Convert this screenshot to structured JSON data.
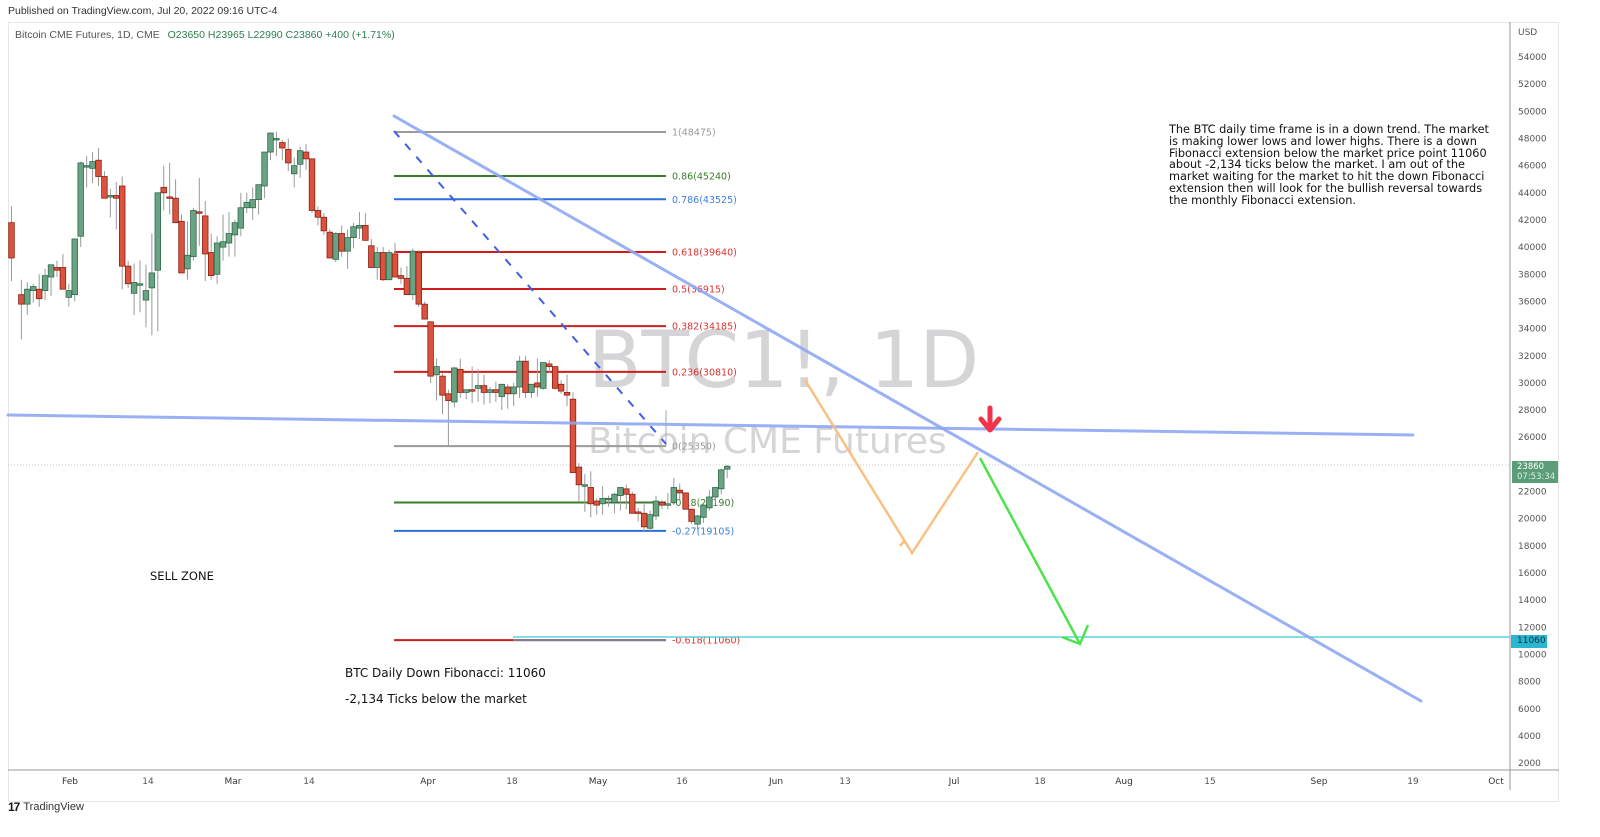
{
  "header": {
    "published": "Published on TradingView.com, Jul 20, 2022 09:16 UTC-4",
    "symbol": "Bitcoin CME Futures, 1D, CME",
    "ohlc": "O23650  H23965  L22990  C23860  +400 (+1.71%)"
  },
  "watermark": {
    "line1": "BTC1!, 1D",
    "line2": "Bitcoin CME Futures"
  },
  "price_axis": {
    "currency": "USD",
    "last_price": "23860",
    "countdown": "07:53:34",
    "fib_target_tag": "11060"
  },
  "annotations": {
    "note": "The BTC daily time frame is in a down trend. The market is making lower lows and lower highs. There is a down Fibonacci extension below the market price point 11060 about -2,134 ticks below the market. I am out of the market waiting for the market to hit the down Fibonacci extension then will look for the bullish reversal towards the monthly Fibonacci extension.",
    "sell_zone": "SELL ZONE",
    "fib_note_1": "BTC Daily Down Fibonacci: 11060",
    "fib_note_2": "-2,134 Ticks below the market"
  },
  "footer": {
    "brand": "TradingView",
    "brand_mark": "17"
  },
  "colors": {
    "up": "#6aa384",
    "up_border": "#2e6b4a",
    "down": "#d9533f",
    "down_border": "#8e1f12",
    "trendline": "#8fa8f5",
    "fib_red": "#d01c1c",
    "fib_green": "#3a7d2a",
    "fib_blue": "#2a6fdb",
    "fib_grey": "#9a9a9a",
    "target": "#5ad0e0",
    "arrow_red": "#f0344a",
    "zigzag": "#fbbd7c",
    "proj_green": "#4ce34c"
  },
  "chart_data": {
    "type": "candlestick",
    "title": "Bitcoin CME Futures, 1D, CME",
    "xlabel": "",
    "ylabel": "USD",
    "ylim": [
      2000,
      55000
    ],
    "x_ticks": [
      "Feb",
      "14",
      "Mar",
      "14",
      "Apr",
      "18",
      "May",
      "16",
      "Jun",
      "13",
      "Jul",
      "18",
      "Aug",
      "15",
      "Sep",
      "19",
      "Oct"
    ],
    "y_ticks": [
      54000,
      52000,
      50000,
      48000,
      46000,
      44000,
      42000,
      40000,
      38000,
      36000,
      34000,
      32000,
      30000,
      28000,
      26000,
      22000,
      20000,
      18000,
      16000,
      14000,
      12000,
      10000,
      8000,
      6000,
      4000,
      2000
    ],
    "grid": false,
    "last": {
      "open": 23650,
      "high": 23965,
      "low": 22990,
      "close": 23860,
      "change": 400,
      "change_pct": 1.71
    },
    "fibonacci": [
      {
        "level": "1",
        "price": 48475,
        "label": "1(48475)",
        "color": "grey"
      },
      {
        "level": "0.86",
        "price": 45240,
        "label": "0.86(45240)",
        "color": "green"
      },
      {
        "level": "0.786",
        "price": 43525,
        "label": "0.786(43525)",
        "color": "blue"
      },
      {
        "level": "0.618",
        "price": 39640,
        "label": "0.618(39640)",
        "color": "red"
      },
      {
        "level": "0.5",
        "price": 36915,
        "label": "0.5(36915)",
        "color": "red"
      },
      {
        "level": "0.382",
        "price": 34185,
        "label": "0.382(34185)",
        "color": "red"
      },
      {
        "level": "0.236",
        "price": 30810,
        "label": "0.236(30810)",
        "color": "red"
      },
      {
        "level": "0",
        "price": 25350,
        "label": "0(25350)",
        "color": "grey"
      },
      {
        "level": "-0.18",
        "price": 21190,
        "label": "-0.18(21190)",
        "color": "green"
      },
      {
        "level": "-0.27",
        "price": 19105,
        "label": "-0.27(19105)",
        "color": "blue"
      },
      {
        "level": "-0.618",
        "price": 11060,
        "label": "-0.618(11060)",
        "color": "red"
      }
    ],
    "candles": [
      [
        9,
        41800,
        43000,
        37500,
        39200
      ],
      [
        14,
        36500,
        37600,
        33200,
        35800
      ],
      [
        17,
        35800,
        37400,
        35000,
        36900
      ],
      [
        20,
        36800,
        37300,
        35900,
        37100
      ],
      [
        23,
        36900,
        38000,
        35600,
        36200
      ],
      [
        26,
        36800,
        38400,
        36100,
        37900
      ],
      [
        29,
        37800,
        38500,
        36400,
        38700
      ],
      [
        32,
        38500,
        39000,
        37800,
        38300
      ],
      [
        35,
        38500,
        39500,
        37000,
        36900
      ],
      [
        38,
        36300,
        37300,
        35600,
        36800
      ],
      [
        41,
        36500,
        40300,
        36000,
        40600
      ],
      [
        44,
        40800,
        46300,
        40000,
        46200
      ],
      [
        47,
        45900,
        46700,
        44400,
        46000
      ],
      [
        50,
        45800,
        47000,
        44700,
        46300
      ],
      [
        53,
        46400,
        47300,
        44500,
        45200
      ],
      [
        56,
        45200,
        45600,
        43600,
        43600
      ],
      [
        59,
        43700,
        44300,
        42200,
        43800
      ],
      [
        62,
        43800,
        44800,
        41300,
        43600
      ],
      [
        65,
        44500,
        45200,
        36900,
        38600
      ],
      [
        68,
        38600,
        39000,
        37000,
        37300
      ],
      [
        71,
        36600,
        38800,
        35000,
        37400
      ],
      [
        74,
        37200,
        39000,
        35200,
        37300
      ],
      [
        77,
        36100,
        38700,
        34100,
        36800
      ],
      [
        80,
        37000,
        41000,
        33500,
        38100
      ],
      [
        83,
        38300,
        43800,
        33800,
        44000
      ],
      [
        86,
        44400,
        46000,
        42700,
        44000
      ],
      [
        89,
        43700,
        46200,
        42400,
        43600
      ],
      [
        92,
        43600,
        45000,
        43600,
        41800
      ],
      [
        95,
        41900,
        42400,
        39900,
        38100
      ],
      [
        98,
        38400,
        41900,
        37600,
        39400
      ],
      [
        101,
        39300,
        42900,
        39000,
        42700
      ],
      [
        104,
        42600,
        45100,
        40100,
        42500
      ],
      [
        107,
        42300,
        43400,
        37500,
        39500
      ],
      [
        110,
        39600,
        41000,
        37600,
        37900
      ],
      [
        113,
        38000,
        40800,
        37300,
        40300
      ],
      [
        116,
        40000,
        42400,
        39000,
        40400
      ],
      [
        119,
        40300,
        42600,
        39300,
        41000
      ],
      [
        122,
        40900,
        42000,
        39300,
        41800
      ],
      [
        125,
        41400,
        44000,
        40800,
        42900
      ],
      [
        128,
        42900,
        44000,
        42500,
        43300
      ],
      [
        131,
        42900,
        44400,
        42000,
        43500
      ],
      [
        134,
        43500,
        44400,
        42400,
        44600
      ],
      [
        137,
        44500,
        46600,
        43600,
        47000
      ],
      [
        140,
        47000,
        48100,
        46400,
        48400
      ],
      [
        143,
        48000,
        48500,
        46700,
        48000
      ],
      [
        146,
        47700,
        47900,
        46400,
        47300
      ],
      [
        149,
        47200,
        48000,
        45600,
        46200
      ],
      [
        152,
        45400,
        46600,
        44400,
        46000
      ],
      [
        155,
        46100,
        47400,
        45100,
        47100
      ],
      [
        158,
        47000,
        47600,
        45700,
        46500
      ],
      [
        161,
        46500,
        46500,
        42500,
        42700
      ],
      [
        164,
        42700,
        43000,
        41600,
        42200
      ],
      [
        167,
        42200,
        42500,
        40900,
        41200
      ],
      [
        170,
        41100,
        41300,
        39200,
        39200
      ],
      [
        173,
        39100,
        41100,
        38900,
        41000
      ],
      [
        176,
        41000,
        41600,
        39300,
        39700
      ],
      [
        179,
        39700,
        41300,
        38400,
        40700
      ],
      [
        182,
        40700,
        41800,
        39900,
        41500
      ],
      [
        185,
        41400,
        42600,
        40600,
        41600
      ],
      [
        188,
        41600,
        42500,
        40700,
        40500
      ],
      [
        191,
        40100,
        40600,
        38800,
        38500
      ],
      [
        194,
        38500,
        40000,
        37600,
        39600
      ],
      [
        197,
        39600,
        40000,
        37500,
        37600
      ],
      [
        200,
        37600,
        39800,
        37600,
        39600
      ],
      [
        203,
        39500,
        40300,
        38300,
        37800
      ],
      [
        206,
        37900,
        38500,
        37300,
        37700
      ],
      [
        209,
        37700,
        38600,
        36800,
        36500
      ],
      [
        212,
        36500,
        39900,
        36100,
        39700
      ],
      [
        215,
        39600,
        39800,
        35600,
        35800
      ],
      [
        218,
        35800,
        36000,
        34700,
        34700
      ],
      [
        221,
        34500,
        34400,
        30000,
        30500
      ],
      [
        224,
        30600,
        31800,
        28700,
        31200
      ],
      [
        227,
        30500,
        30700,
        27700,
        29100
      ],
      [
        230,
        29200,
        29500,
        25300,
        28700
      ],
      [
        233,
        28600,
        31200,
        28200,
        31100
      ],
      [
        236,
        31000,
        31800,
        28900,
        29300
      ],
      [
        239,
        29300,
        29500,
        28800,
        29500
      ],
      [
        242,
        29500,
        31200,
        28500,
        29400
      ],
      [
        245,
        29600,
        31000,
        28600,
        29800
      ],
      [
        248,
        29800,
        30600,
        28400,
        29300
      ],
      [
        251,
        29300,
        29700,
        28500,
        29500
      ],
      [
        254,
        29500,
        30100,
        28600,
        29300
      ],
      [
        257,
        29000,
        29400,
        28000,
        29900
      ],
      [
        260,
        29700,
        29900,
        28100,
        29200
      ],
      [
        263,
        29200,
        30000,
        28300,
        29700
      ],
      [
        266,
        29700,
        32000,
        28900,
        31600
      ],
      [
        269,
        31600,
        32000,
        28900,
        29300
      ],
      [
        272,
        29300,
        29700,
        28900,
        29900
      ],
      [
        275,
        30000,
        31800,
        29000,
        29700
      ],
      [
        278,
        29600,
        30600,
        29500,
        31500
      ],
      [
        281,
        31400,
        31700,
        30700,
        31200
      ],
      [
        284,
        31200,
        31000,
        29500,
        29600
      ],
      [
        287,
        29900,
        30200,
        29200,
        29400
      ],
      [
        290,
        29300,
        30600,
        28300,
        29100
      ],
      [
        293,
        28800,
        29300,
        25600,
        23400
      ],
      [
        296,
        23800,
        24100,
        21300,
        22500
      ],
      [
        299,
        22400,
        23300,
        20500,
        22500
      ],
      [
        302,
        22300,
        23500,
        20100,
        21100
      ],
      [
        305,
        21300,
        21500,
        20300,
        21000
      ],
      [
        308,
        21100,
        22400,
        20300,
        21500
      ],
      [
        311,
        21400,
        21700,
        20900,
        21500
      ],
      [
        314,
        21200,
        21900,
        20400,
        21800
      ],
      [
        317,
        21700,
        22000,
        20600,
        22300
      ],
      [
        320,
        22200,
        22500,
        20700,
        21800
      ],
      [
        323,
        21800,
        22000,
        20700,
        20400
      ],
      [
        326,
        20500,
        20800,
        19800,
        20400
      ],
      [
        329,
        20400,
        21200,
        19000,
        19400
      ],
      [
        332,
        19300,
        20600,
        19000,
        20300
      ],
      [
        335,
        20200,
        21700,
        19900,
        21300
      ],
      [
        338,
        21200,
        21400,
        20700,
        21000
      ],
      [
        341,
        21000,
        21900,
        20700,
        21100
      ],
      [
        344,
        21200,
        23000,
        21000,
        22300
      ],
      [
        347,
        22100,
        22600,
        21400,
        21900
      ],
      [
        350,
        21900,
        21800,
        20900,
        20700
      ],
      [
        353,
        20700,
        20400,
        19600,
        19800
      ],
      [
        356,
        19600,
        20300,
        19200,
        20200
      ],
      [
        359,
        20100,
        21100,
        19700,
        21000
      ],
      [
        362,
        20800,
        22100,
        20600,
        21600
      ],
      [
        365,
        21600,
        22200,
        21100,
        22300
      ],
      [
        368,
        22200,
        23700,
        21800,
        23600
      ],
      [
        371,
        23650,
        23965,
        22990,
        23860
      ]
    ]
  }
}
